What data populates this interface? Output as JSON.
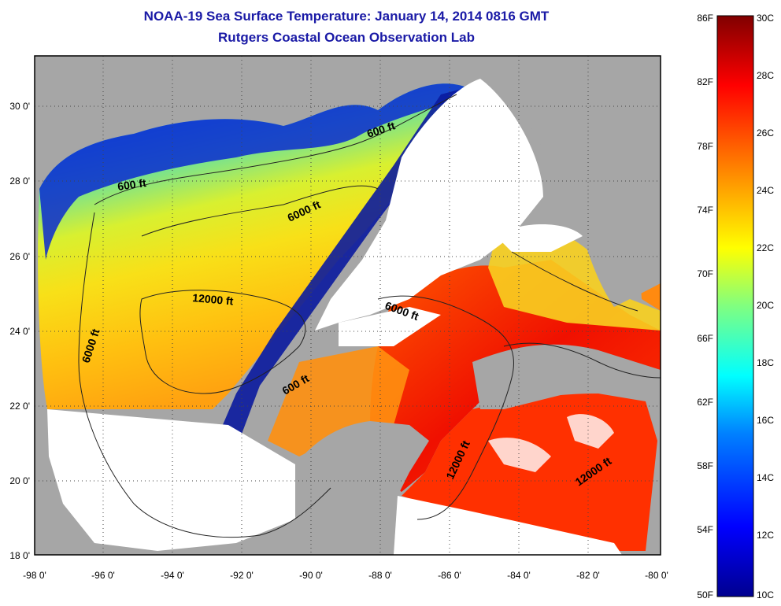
{
  "header": {
    "title": "NOAA-19 Sea Surface Temperature:  January 14, 2014 0816 GMT",
    "subtitle": "Rutgers Coastal Ocean Observation Lab"
  },
  "map": {
    "lon_ticks": [
      "-98 0'",
      "-96 0'",
      "-94 0'",
      "-92 0'",
      "-90 0'",
      "-88 0'",
      "-86 0'",
      "-84 0'",
      "-82 0'",
      "-80 0'"
    ],
    "lat_ticks": [
      "18 0'",
      "20 0'",
      "22 0'",
      "24 0'",
      "26 0'",
      "28 0'",
      "30 0'"
    ],
    "contour_labels": [
      "600 ft",
      "600 ft",
      "6000 ft",
      "12000 ft",
      "6000 ft",
      "6000 ft",
      "600 ft",
      "12000 ft",
      "12000 ft"
    ]
  },
  "colorbar": {
    "fahrenheit": [
      "86F",
      "82F",
      "78F",
      "74F",
      "70F",
      "66F",
      "62F",
      "58F",
      "54F",
      "50F"
    ],
    "celsius": [
      "30C",
      "28C",
      "26C",
      "24C",
      "22C",
      "20C",
      "18C",
      "16C",
      "14C",
      "12C",
      "10C"
    ]
  },
  "colors": {
    "title": "#1a1aa6",
    "land": "#a6a6a6",
    "cloud": "#ffffff"
  }
}
